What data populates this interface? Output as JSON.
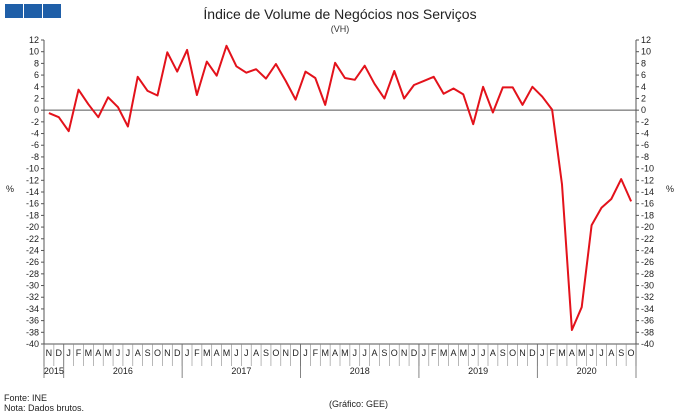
{
  "logo": {
    "color": "#1f5fa8"
  },
  "chart_data": {
    "type": "line",
    "title": "Índice de Volume de Negócios nos Serviços",
    "subtitle": "(VH)",
    "ylabel_left": "%",
    "ylabel_right": "%",
    "ylim": [
      -40,
      12
    ],
    "y_ticks": [
      12,
      10,
      8,
      6,
      4,
      2,
      0,
      -2,
      -4,
      -6,
      -8,
      -10,
      -12,
      -14,
      -16,
      -18,
      -20,
      -22,
      -24,
      -26,
      -28,
      -30,
      -32,
      -34,
      -36,
      -38,
      -40
    ],
    "grid": false,
    "legend": "none",
    "line_color": "#e3121b",
    "x_month_labels": [
      "N",
      "D",
      "J",
      "F",
      "M",
      "A",
      "M",
      "J",
      "J",
      "A",
      "S",
      "O",
      "N",
      "D",
      "J",
      "F",
      "M",
      "A",
      "M",
      "J",
      "J",
      "A",
      "S",
      "O",
      "N",
      "D",
      "J",
      "F",
      "M",
      "A",
      "M",
      "J",
      "J",
      "A",
      "S",
      "O",
      "N",
      "D",
      "J",
      "F",
      "M",
      "A",
      "M",
      "J",
      "J",
      "A",
      "S",
      "O",
      "N",
      "D",
      "J",
      "F",
      "M",
      "A",
      "M",
      "J",
      "J",
      "A",
      "S",
      "O"
    ],
    "year_labels": [
      {
        "label": "2015",
        "start": 0,
        "end": 1
      },
      {
        "label": "2016",
        "start": 2,
        "end": 13
      },
      {
        "label": "2017",
        "start": 14,
        "end": 25
      },
      {
        "label": "2018",
        "start": 26,
        "end": 37
      },
      {
        "label": "2019",
        "start": 38,
        "end": 49
      },
      {
        "label": "2020",
        "start": 50,
        "end": 59
      }
    ],
    "series": [
      {
        "values": [
          -0.5,
          -1.2,
          -3.6,
          3.5,
          1.0,
          -1.2,
          2.2,
          0.5,
          -2.8,
          5.7,
          3.3,
          2.5,
          9.9,
          6.6,
          10.3,
          2.6,
          8.3,
          5.9,
          11.0,
          7.5,
          6.4,
          7.0,
          5.4,
          7.9,
          5.0,
          1.8,
          6.6,
          5.5,
          0.9,
          8.1,
          5.5,
          5.2,
          7.6,
          4.5,
          2.0,
          6.7,
          2.0,
          4.3,
          5.0,
          5.7,
          2.8,
          3.7,
          2.7,
          -2.4,
          4.0,
          -0.4,
          3.9,
          3.9,
          0.9,
          4.0,
          2.3,
          0.1,
          -12.7,
          -37.6,
          -33.7,
          -19.7,
          -16.7,
          -15.2,
          -11.8,
          -15.6
        ]
      }
    ]
  },
  "footer": {
    "source": "Fonte: INE",
    "note": "Nota: Dados brutos.",
    "credit": "(Gráfico: GEE)"
  }
}
